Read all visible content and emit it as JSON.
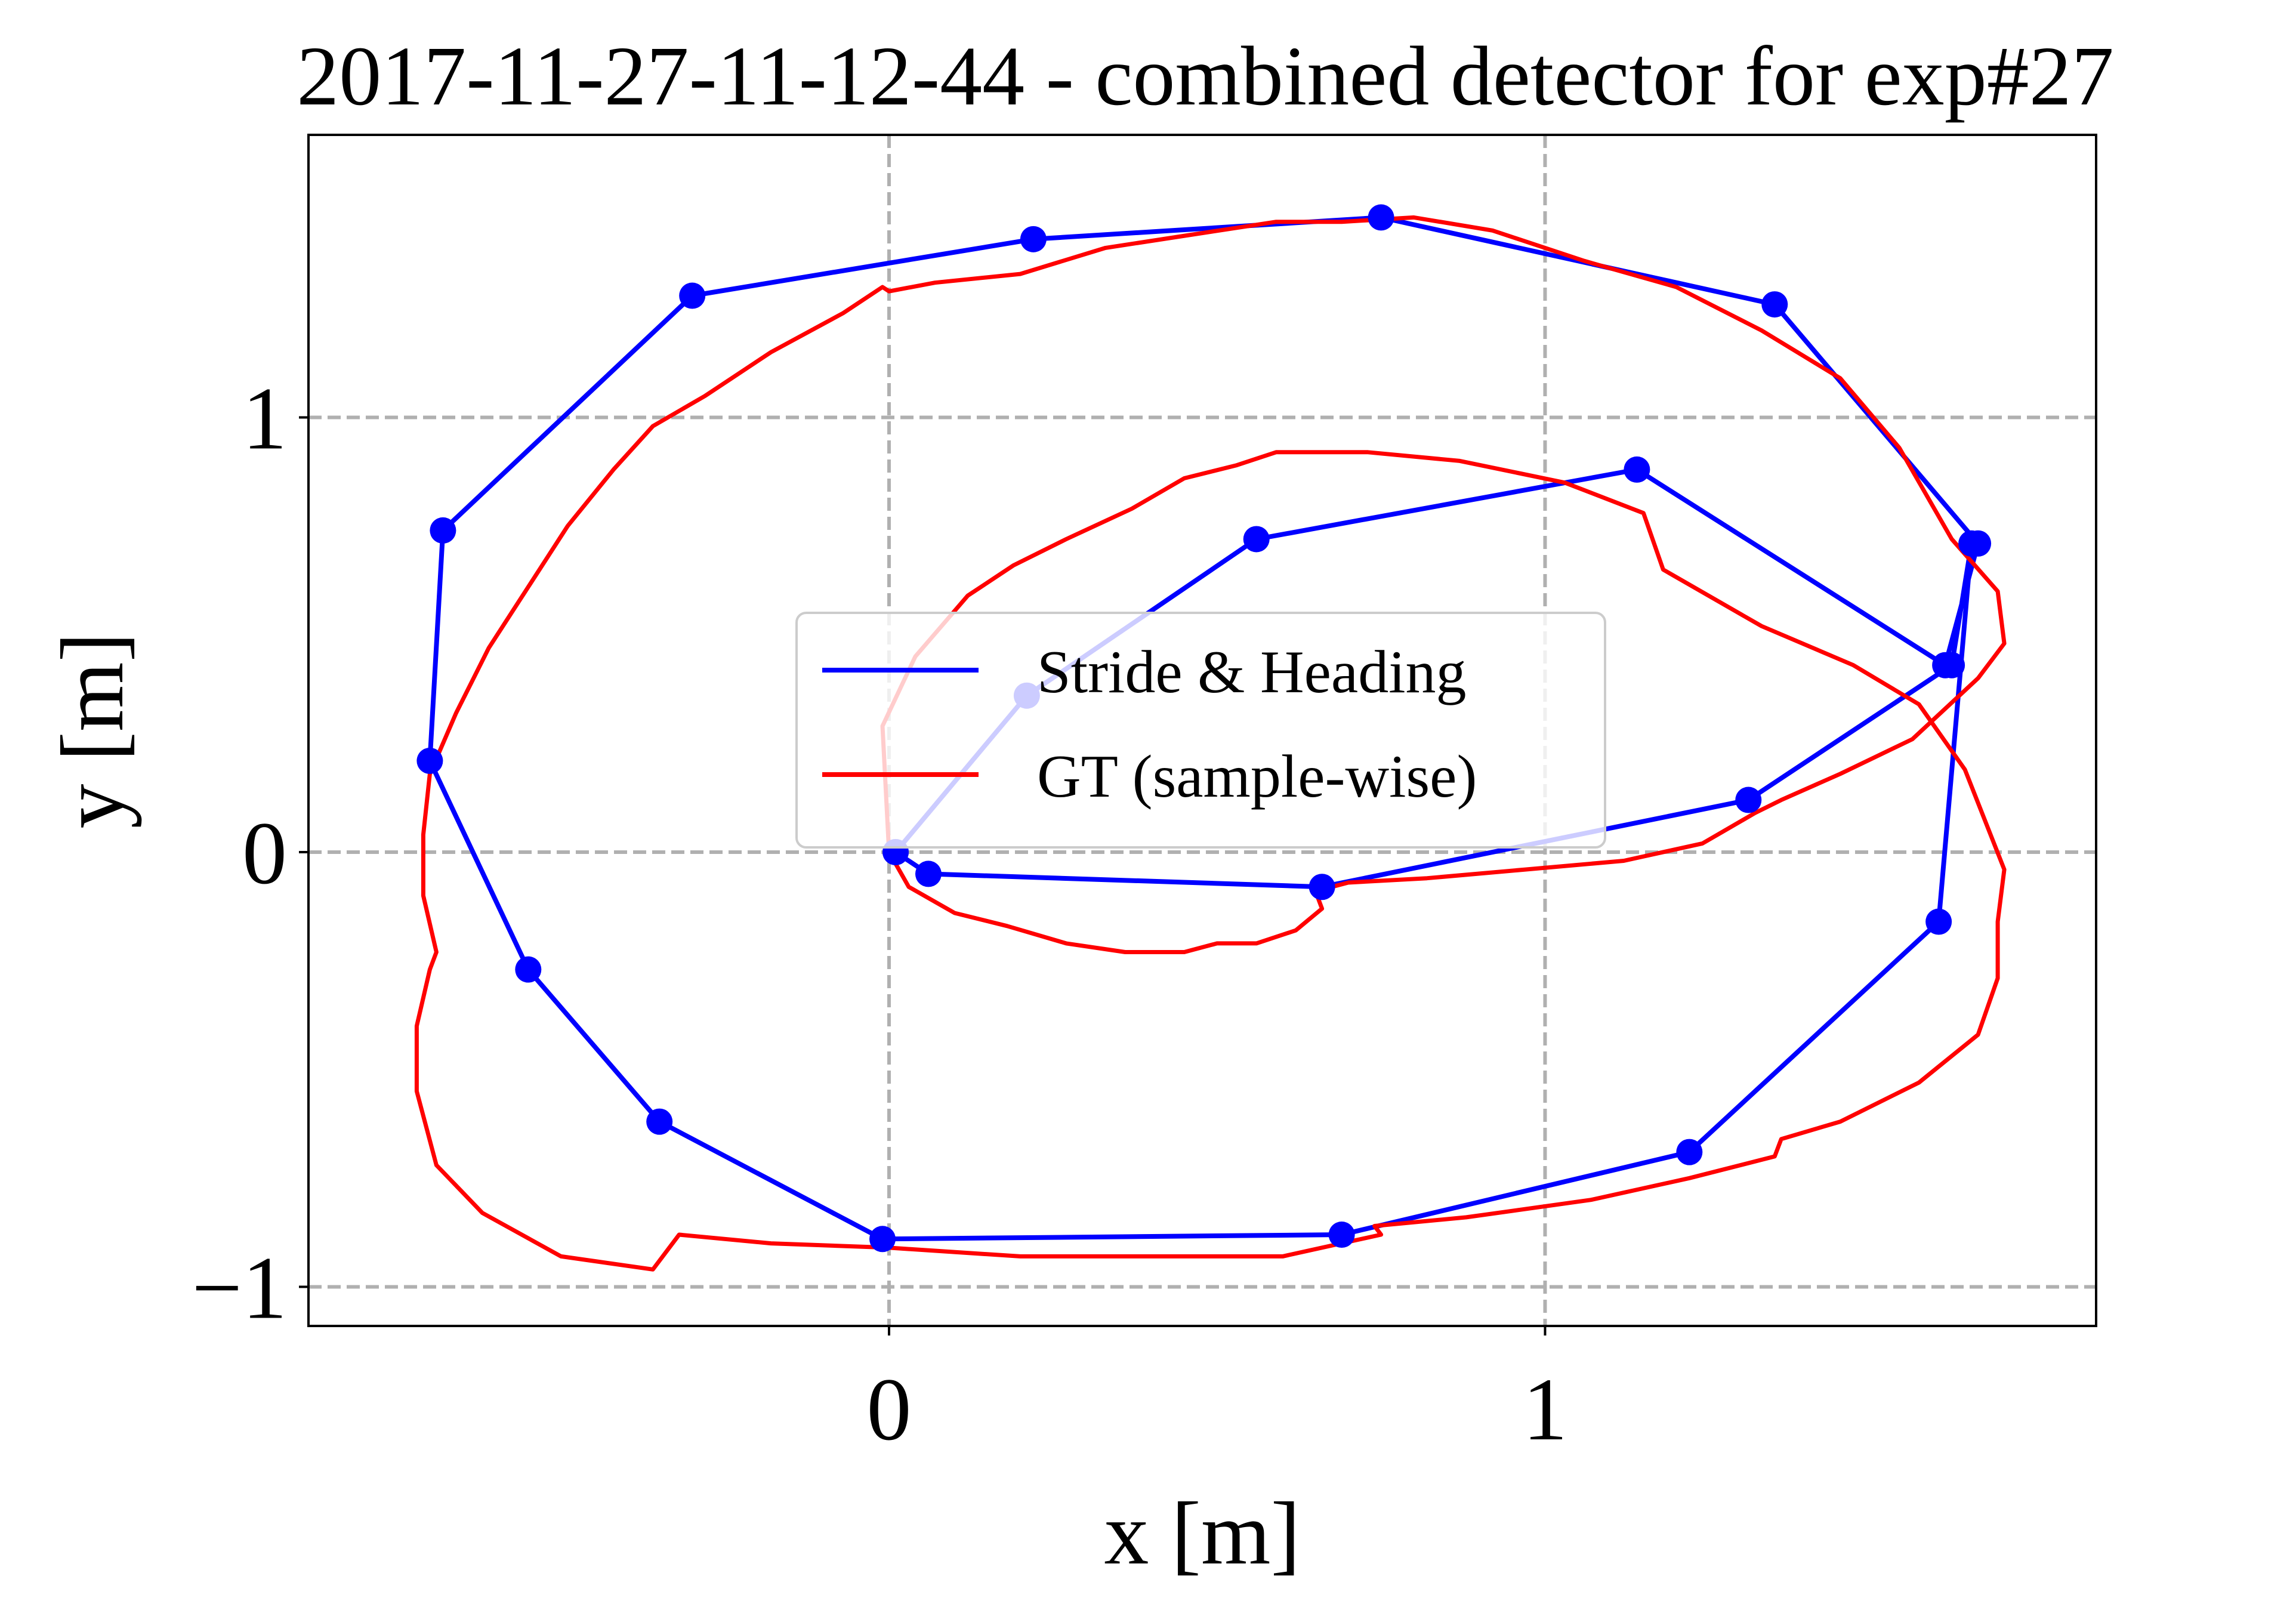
{
  "chart_data": {
    "type": "line",
    "title": "2017-11-27-11-12-44 - combined detector for exp#27",
    "xlabel": "x [m]",
    "ylabel": "y [m]",
    "xlim": [
      -0.885,
      1.84
    ],
    "ylim": [
      -1.09,
      1.65
    ],
    "xticks": [
      0,
      1
    ],
    "yticks": [
      -1,
      0,
      1
    ],
    "xtick_labels": [
      "0",
      "1"
    ],
    "ytick_labels": [
      "−1",
      "0",
      "1"
    ],
    "grid": true,
    "legend": {
      "position": "center",
      "entries": [
        "Stride & Heading",
        "GT (sample-wise)"
      ]
    },
    "series": [
      {
        "name": "Stride & Heading",
        "color": "#0000ff",
        "markers": true,
        "x": [
          0.01,
          0.06,
          0.66,
          1.31,
          1.62,
          1.65,
          1.6,
          1.22,
          0.69,
          -0.01,
          -0.35,
          -0.55,
          -0.7,
          -0.68,
          -0.3,
          0.22,
          0.75,
          1.35,
          1.66,
          1.61,
          1.14,
          0.56,
          0.21,
          0.01
        ],
        "y": [
          0.0,
          -0.05,
          -0.08,
          0.12,
          0.43,
          0.71,
          -0.16,
          -0.69,
          -0.88,
          -0.89,
          -0.62,
          -0.27,
          0.21,
          0.74,
          1.28,
          1.41,
          1.46,
          1.26,
          0.71,
          0.43,
          0.88,
          0.72,
          0.36,
          0.0
        ]
      },
      {
        "name": "GT (sample-wise)",
        "color": "#ff0000",
        "markers": false,
        "x": [
          0.0,
          0.03,
          0.1,
          0.18,
          0.27,
          0.36,
          0.45,
          0.5,
          0.56,
          0.62,
          0.66,
          0.65,
          0.7,
          0.82,
          0.97,
          1.12,
          1.24,
          1.32,
          1.36,
          1.45,
          1.56,
          1.66,
          1.7,
          1.69,
          1.62,
          1.54,
          1.45,
          1.33,
          1.2,
          1.06,
          0.92,
          0.8,
          0.69,
          0.59,
          0.46,
          0.33,
          0.2,
          0.07,
          0.0,
          -0.01,
          -0.07,
          -0.18,
          -0.28,
          -0.36,
          -0.42,
          -0.49,
          -0.55,
          -0.61,
          -0.66,
          -0.7,
          -0.71,
          -0.71,
          -0.69,
          -0.7,
          -0.72,
          -0.72,
          -0.69,
          -0.62,
          -0.5,
          -0.36,
          -0.32,
          -0.18,
          0.0,
          0.2,
          0.22,
          0.4,
          0.6,
          0.75,
          0.74,
          0.88,
          1.07,
          1.22,
          1.35,
          1.36,
          1.45,
          1.57,
          1.66,
          1.69,
          1.69,
          1.7,
          1.64,
          1.57,
          1.47,
          1.33,
          1.18,
          1.15,
          1.03,
          0.87,
          0.73,
          0.59,
          0.53,
          0.45,
          0.37,
          0.27,
          0.19,
          0.12,
          0.04,
          -0.01,
          0.0
        ],
        "y": [
          0.0,
          -0.08,
          -0.14,
          -0.17,
          -0.21,
          -0.23,
          -0.23,
          -0.21,
          -0.21,
          -0.18,
          -0.13,
          -0.09,
          -0.07,
          -0.06,
          -0.04,
          -0.02,
          0.02,
          0.09,
          0.12,
          0.18,
          0.26,
          0.4,
          0.48,
          0.6,
          0.72,
          0.93,
          1.09,
          1.2,
          1.3,
          1.36,
          1.43,
          1.46,
          1.45,
          1.45,
          1.42,
          1.39,
          1.33,
          1.31,
          1.29,
          1.3,
          1.24,
          1.15,
          1.05,
          0.98,
          0.88,
          0.75,
          0.61,
          0.47,
          0.32,
          0.18,
          0.04,
          -0.1,
          -0.23,
          -0.27,
          -0.4,
          -0.55,
          -0.72,
          -0.83,
          -0.93,
          -0.96,
          -0.88,
          -0.9,
          -0.91,
          -0.93,
          -0.93,
          -0.93,
          -0.93,
          -0.88,
          -0.86,
          -0.84,
          -0.8,
          -0.75,
          -0.7,
          -0.66,
          -0.62,
          -0.53,
          -0.42,
          -0.29,
          -0.16,
          -0.04,
          0.19,
          0.34,
          0.43,
          0.52,
          0.65,
          0.78,
          0.85,
          0.9,
          0.92,
          0.92,
          0.89,
          0.86,
          0.79,
          0.72,
          0.66,
          0.59,
          0.45,
          0.29,
          0.0
        ]
      }
    ]
  }
}
